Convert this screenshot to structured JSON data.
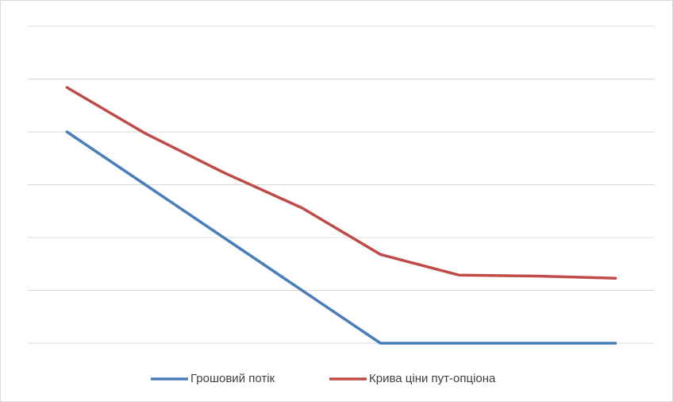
{
  "chart_data": {
    "type": "line",
    "categories": [
      null,
      null,
      null,
      null,
      null,
      null,
      null,
      null
    ],
    "series": [
      {
        "name": "Грошовий потік",
        "color": "#4a7ebb",
        "values": [
          4,
          3,
          2,
          1,
          0,
          0,
          0,
          0
        ]
      },
      {
        "name": "Крива ціни пут-опціона",
        "color": "#be4b48",
        "values": [
          4.84,
          3.97,
          3.23,
          2.56,
          1.68,
          1.29,
          1.27,
          1.23
        ]
      }
    ],
    "ylim": [
      0,
      6
    ],
    "yticks": [
      0,
      1,
      2,
      3,
      4,
      5,
      6
    ],
    "grid": true,
    "legend": "bottom"
  }
}
